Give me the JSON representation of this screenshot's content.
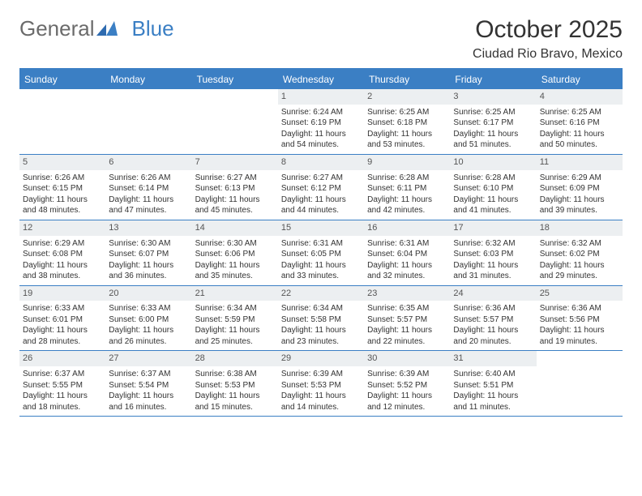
{
  "brand": {
    "part1": "General",
    "part2": "Blue"
  },
  "title": "October 2025",
  "location": "Ciudad Rio Bravo, Mexico",
  "colors": {
    "accent": "#3b7fc4",
    "header_bg": "#eceff1",
    "text": "#333333",
    "bg": "#ffffff"
  },
  "weekdays": [
    "Sunday",
    "Monday",
    "Tuesday",
    "Wednesday",
    "Thursday",
    "Friday",
    "Saturday"
  ],
  "weeks": [
    [
      null,
      null,
      null,
      {
        "d": "1",
        "sr": "Sunrise: 6:24 AM",
        "ss": "Sunset: 6:19 PM",
        "dl": "Daylight: 11 hours and 54 minutes."
      },
      {
        "d": "2",
        "sr": "Sunrise: 6:25 AM",
        "ss": "Sunset: 6:18 PM",
        "dl": "Daylight: 11 hours and 53 minutes."
      },
      {
        "d": "3",
        "sr": "Sunrise: 6:25 AM",
        "ss": "Sunset: 6:17 PM",
        "dl": "Daylight: 11 hours and 51 minutes."
      },
      {
        "d": "4",
        "sr": "Sunrise: 6:25 AM",
        "ss": "Sunset: 6:16 PM",
        "dl": "Daylight: 11 hours and 50 minutes."
      }
    ],
    [
      {
        "d": "5",
        "sr": "Sunrise: 6:26 AM",
        "ss": "Sunset: 6:15 PM",
        "dl": "Daylight: 11 hours and 48 minutes."
      },
      {
        "d": "6",
        "sr": "Sunrise: 6:26 AM",
        "ss": "Sunset: 6:14 PM",
        "dl": "Daylight: 11 hours and 47 minutes."
      },
      {
        "d": "7",
        "sr": "Sunrise: 6:27 AM",
        "ss": "Sunset: 6:13 PM",
        "dl": "Daylight: 11 hours and 45 minutes."
      },
      {
        "d": "8",
        "sr": "Sunrise: 6:27 AM",
        "ss": "Sunset: 6:12 PM",
        "dl": "Daylight: 11 hours and 44 minutes."
      },
      {
        "d": "9",
        "sr": "Sunrise: 6:28 AM",
        "ss": "Sunset: 6:11 PM",
        "dl": "Daylight: 11 hours and 42 minutes."
      },
      {
        "d": "10",
        "sr": "Sunrise: 6:28 AM",
        "ss": "Sunset: 6:10 PM",
        "dl": "Daylight: 11 hours and 41 minutes."
      },
      {
        "d": "11",
        "sr": "Sunrise: 6:29 AM",
        "ss": "Sunset: 6:09 PM",
        "dl": "Daylight: 11 hours and 39 minutes."
      }
    ],
    [
      {
        "d": "12",
        "sr": "Sunrise: 6:29 AM",
        "ss": "Sunset: 6:08 PM",
        "dl": "Daylight: 11 hours and 38 minutes."
      },
      {
        "d": "13",
        "sr": "Sunrise: 6:30 AM",
        "ss": "Sunset: 6:07 PM",
        "dl": "Daylight: 11 hours and 36 minutes."
      },
      {
        "d": "14",
        "sr": "Sunrise: 6:30 AM",
        "ss": "Sunset: 6:06 PM",
        "dl": "Daylight: 11 hours and 35 minutes."
      },
      {
        "d": "15",
        "sr": "Sunrise: 6:31 AM",
        "ss": "Sunset: 6:05 PM",
        "dl": "Daylight: 11 hours and 33 minutes."
      },
      {
        "d": "16",
        "sr": "Sunrise: 6:31 AM",
        "ss": "Sunset: 6:04 PM",
        "dl": "Daylight: 11 hours and 32 minutes."
      },
      {
        "d": "17",
        "sr": "Sunrise: 6:32 AM",
        "ss": "Sunset: 6:03 PM",
        "dl": "Daylight: 11 hours and 31 minutes."
      },
      {
        "d": "18",
        "sr": "Sunrise: 6:32 AM",
        "ss": "Sunset: 6:02 PM",
        "dl": "Daylight: 11 hours and 29 minutes."
      }
    ],
    [
      {
        "d": "19",
        "sr": "Sunrise: 6:33 AM",
        "ss": "Sunset: 6:01 PM",
        "dl": "Daylight: 11 hours and 28 minutes."
      },
      {
        "d": "20",
        "sr": "Sunrise: 6:33 AM",
        "ss": "Sunset: 6:00 PM",
        "dl": "Daylight: 11 hours and 26 minutes."
      },
      {
        "d": "21",
        "sr": "Sunrise: 6:34 AM",
        "ss": "Sunset: 5:59 PM",
        "dl": "Daylight: 11 hours and 25 minutes."
      },
      {
        "d": "22",
        "sr": "Sunrise: 6:34 AM",
        "ss": "Sunset: 5:58 PM",
        "dl": "Daylight: 11 hours and 23 minutes."
      },
      {
        "d": "23",
        "sr": "Sunrise: 6:35 AM",
        "ss": "Sunset: 5:57 PM",
        "dl": "Daylight: 11 hours and 22 minutes."
      },
      {
        "d": "24",
        "sr": "Sunrise: 6:36 AM",
        "ss": "Sunset: 5:57 PM",
        "dl": "Daylight: 11 hours and 20 minutes."
      },
      {
        "d": "25",
        "sr": "Sunrise: 6:36 AM",
        "ss": "Sunset: 5:56 PM",
        "dl": "Daylight: 11 hours and 19 minutes."
      }
    ],
    [
      {
        "d": "26",
        "sr": "Sunrise: 6:37 AM",
        "ss": "Sunset: 5:55 PM",
        "dl": "Daylight: 11 hours and 18 minutes."
      },
      {
        "d": "27",
        "sr": "Sunrise: 6:37 AM",
        "ss": "Sunset: 5:54 PM",
        "dl": "Daylight: 11 hours and 16 minutes."
      },
      {
        "d": "28",
        "sr": "Sunrise: 6:38 AM",
        "ss": "Sunset: 5:53 PM",
        "dl": "Daylight: 11 hours and 15 minutes."
      },
      {
        "d": "29",
        "sr": "Sunrise: 6:39 AM",
        "ss": "Sunset: 5:53 PM",
        "dl": "Daylight: 11 hours and 14 minutes."
      },
      {
        "d": "30",
        "sr": "Sunrise: 6:39 AM",
        "ss": "Sunset: 5:52 PM",
        "dl": "Daylight: 11 hours and 12 minutes."
      },
      {
        "d": "31",
        "sr": "Sunrise: 6:40 AM",
        "ss": "Sunset: 5:51 PM",
        "dl": "Daylight: 11 hours and 11 minutes."
      },
      null
    ]
  ]
}
